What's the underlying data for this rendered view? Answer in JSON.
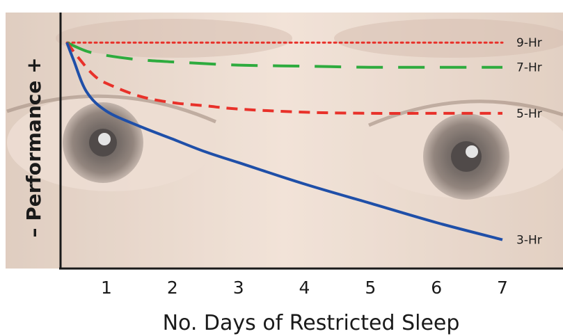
{
  "chart_data": {
    "type": "line",
    "xlabel": "No. Days of Restricted Sleep",
    "ylabel": "– Performance +",
    "x_ticks": [
      1,
      2,
      3,
      4,
      5,
      6,
      7
    ],
    "xlim": [
      0,
      7.5
    ],
    "ylim": [
      0,
      10
    ],
    "grid": false,
    "legend": "inline labels at right end of each line",
    "series": [
      {
        "name": "9-Hr",
        "color": "#e8312a",
        "style": "dotted",
        "x": [
          0.4,
          1,
          2,
          3,
          4,
          5,
          6,
          7
        ],
        "y": [
          9.7,
          9.7,
          9.7,
          9.7,
          9.7,
          9.7,
          9.7,
          9.7
        ]
      },
      {
        "name": "7-Hr",
        "color": "#2eab3e",
        "style": "long-dash",
        "x": [
          0.4,
          0.7,
          1,
          1.5,
          2,
          3,
          4,
          5,
          6,
          7
        ],
        "y": [
          9.7,
          9.3,
          9.1,
          8.9,
          8.8,
          8.65,
          8.6,
          8.55,
          8.55,
          8.55
        ]
      },
      {
        "name": "5-Hr",
        "color": "#e8312a",
        "style": "dashed",
        "x": [
          0.4,
          0.6,
          0.8,
          1,
          1.5,
          2,
          2.5,
          3,
          4,
          5,
          6,
          7
        ],
        "y": [
          9.7,
          8.9,
          8.2,
          7.8,
          7.2,
          6.9,
          6.75,
          6.6,
          6.45,
          6.4,
          6.4,
          6.4
        ]
      },
      {
        "name": "3-Hr",
        "color": "#1f4fa8",
        "style": "solid",
        "x": [
          0.4,
          0.5,
          0.7,
          1,
          1.5,
          2,
          2.5,
          3,
          4,
          5,
          6,
          7
        ],
        "y": [
          9.7,
          8.9,
          7.4,
          6.5,
          5.8,
          5.2,
          4.6,
          4.1,
          3.1,
          2.2,
          1.3,
          0.5
        ]
      }
    ]
  }
}
